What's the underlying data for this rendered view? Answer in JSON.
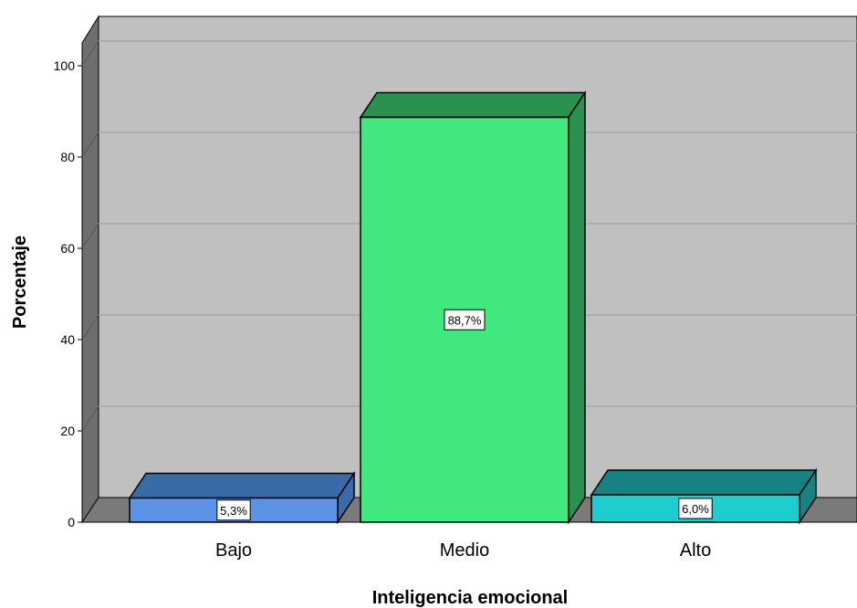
{
  "chart_data": {
    "type": "bar",
    "style": "3d",
    "categories": [
      "Bajo",
      "Medio",
      "Alto"
    ],
    "values": [
      5.3,
      88.7,
      6.0
    ],
    "data_labels": [
      "5,3%",
      "88,7%",
      "6,0%"
    ],
    "xlabel": "Inteligencia emocional",
    "ylabel": "Porcentaje",
    "ylim": [
      0,
      100
    ],
    "yticks": [
      0,
      20,
      40,
      60,
      80,
      100
    ],
    "grid": true,
    "legend": "none",
    "colors": {
      "bars_front": [
        "#5a94e6",
        "#41e87e",
        "#1ecdcd"
      ],
      "bars_top": [
        "#3a6aa8",
        "#2a9150",
        "#178282"
      ],
      "bars_side": [
        "#3a6aa8",
        "#2a9150",
        "#178282"
      ],
      "back_wall": "#c0c0c0",
      "left_wall": "#6e6e6e",
      "floor": "#7a7a7a",
      "gridline": "#a8a8a8"
    }
  }
}
